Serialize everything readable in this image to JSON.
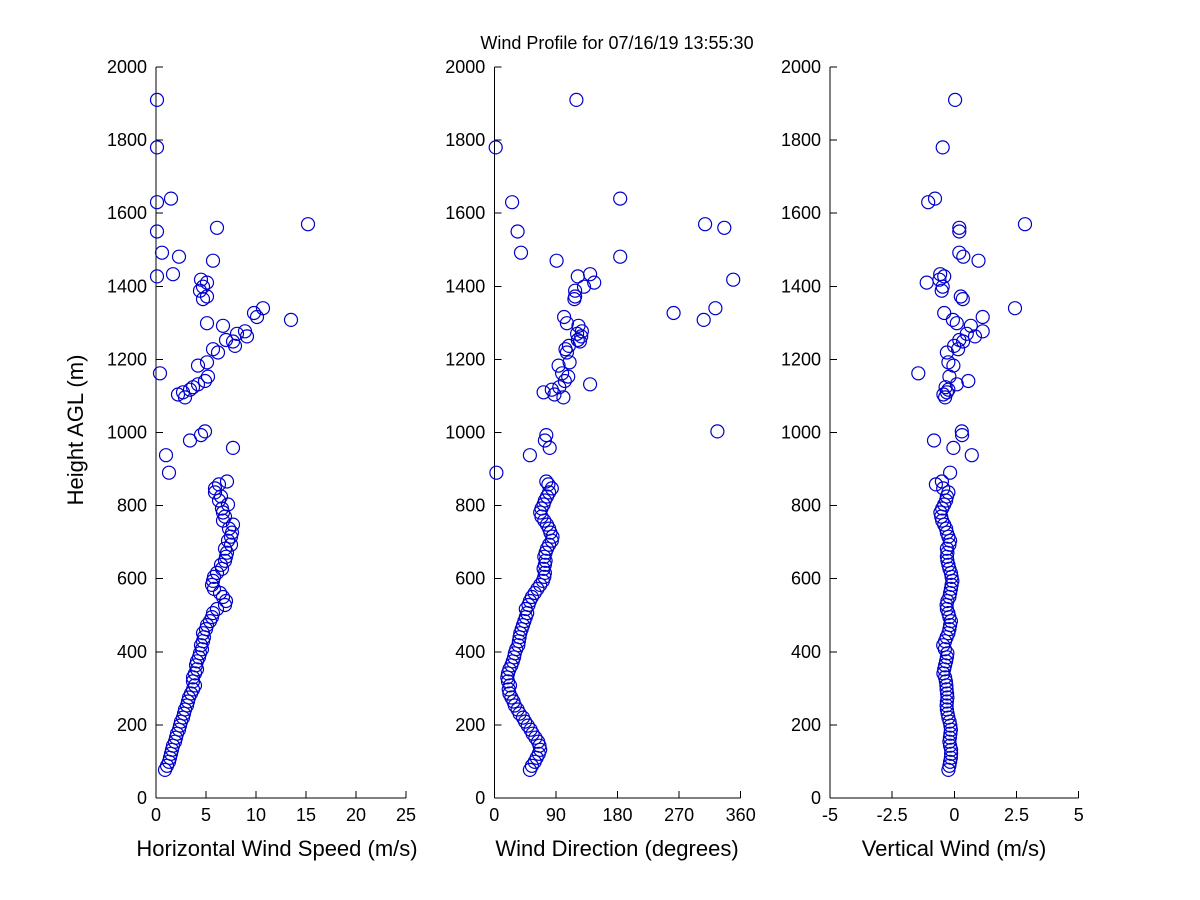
{
  "title": "Wind Profile for  07/16/19 13:55:30",
  "chart_data": {
    "type": "scatter",
    "marker": {
      "shape": "open-circle",
      "color": "#0000cc",
      "radius_px": 6.5
    },
    "grid": false,
    "legend": "none",
    "ylabel": "Height AGL (m)",
    "ylim": [
      0,
      2000
    ],
    "yticks": [
      0,
      200,
      400,
      600,
      800,
      1000,
      1200,
      1400,
      1600,
      1800,
      2000
    ],
    "subplots": [
      {
        "id": "speed",
        "xlabel": "Horizontal Wind Speed (m/s)",
        "xlim": [
          0,
          25
        ],
        "xticks": [
          0,
          5,
          10,
          15,
          20,
          25
        ],
        "data_column": "speed_ms"
      },
      {
        "id": "direction",
        "xlabel": "Wind Direction (degrees)",
        "xlim": [
          0,
          360
        ],
        "xticks": [
          0,
          90,
          180,
          270,
          360
        ],
        "data_column": "direction_deg"
      },
      {
        "id": "vertical",
        "xlabel": "Vertical Wind (m/s)",
        "xlim": [
          -5,
          5
        ],
        "xticks": [
          -5,
          -2.5,
          0,
          2.5,
          5
        ],
        "data_column": "vertical_ms"
      }
    ],
    "columns": [
      "height_m",
      "speed_ms",
      "direction_deg",
      "vertical_ms"
    ],
    "points": [
      [
        77,
        0.9,
        52,
        -0.24
      ],
      [
        88,
        1.1,
        55,
        -0.2
      ],
      [
        99,
        1.3,
        59,
        -0.17
      ],
      [
        110,
        1.4,
        62,
        -0.14
      ],
      [
        121,
        1.5,
        65,
        -0.13
      ],
      [
        132,
        1.6,
        67,
        -0.13
      ],
      [
        143,
        1.7,
        66,
        -0.17
      ],
      [
        154,
        1.9,
        64,
        -0.2
      ],
      [
        165,
        2.0,
        60,
        -0.18
      ],
      [
        176,
        2.1,
        56,
        -0.16
      ],
      [
        187,
        2.3,
        53,
        -0.14
      ],
      [
        198,
        2.4,
        49,
        -0.16
      ],
      [
        209,
        2.5,
        45,
        -0.19
      ],
      [
        220,
        2.7,
        42,
        -0.24
      ],
      [
        231,
        2.8,
        37,
        -0.27
      ],
      [
        242,
        2.9,
        34,
        -0.3
      ],
      [
        253,
        3.1,
        30,
        -0.31
      ],
      [
        264,
        3.2,
        28,
        -0.3
      ],
      [
        275,
        3.3,
        25,
        -0.28
      ],
      [
        286,
        3.5,
        22,
        -0.29
      ],
      [
        297,
        3.7,
        21,
        -0.31
      ],
      [
        308,
        3.9,
        23,
        -0.32
      ],
      [
        319,
        3.7,
        20,
        -0.34
      ],
      [
        330,
        3.7,
        19,
        -0.37
      ],
      [
        341,
        3.9,
        20,
        -0.44
      ],
      [
        352,
        4.1,
        22,
        -0.41
      ],
      [
        363,
        4.0,
        25,
        -0.37
      ],
      [
        374,
        4.1,
        27,
        -0.33
      ],
      [
        385,
        4.3,
        29,
        -0.3
      ],
      [
        396,
        4.4,
        30,
        -0.28
      ],
      [
        407,
        4.6,
        32,
        -0.38
      ],
      [
        418,
        4.5,
        35,
        -0.45
      ],
      [
        429,
        4.7,
        36,
        -0.37
      ],
      [
        440,
        4.8,
        37,
        -0.31
      ],
      [
        451,
        4.7,
        38,
        -0.24
      ],
      [
        462,
        5.0,
        40,
        -0.2
      ],
      [
        473,
        5.1,
        42,
        -0.17
      ],
      [
        484,
        5.4,
        44,
        -0.14
      ],
      [
        495,
        5.6,
        46,
        -0.2
      ],
      [
        506,
        5.7,
        48,
        -0.24
      ],
      [
        517,
        6.1,
        46,
        -0.3
      ],
      [
        528,
        6.9,
        50,
        -0.31
      ],
      [
        539,
        7.0,
        52,
        -0.28
      ],
      [
        550,
        6.7,
        55,
        -0.2
      ],
      [
        561,
        6.4,
        59,
        -0.17
      ],
      [
        572,
        5.8,
        63,
        -0.14
      ],
      [
        583,
        5.6,
        67,
        -0.11
      ],
      [
        594,
        5.7,
        71,
        -0.08
      ],
      [
        605,
        5.8,
        73,
        -0.11
      ],
      [
        616,
        6.1,
        74,
        -0.14
      ],
      [
        627,
        6.6,
        72,
        -0.2
      ],
      [
        638,
        6.5,
        74,
        -0.24
      ],
      [
        649,
        6.9,
        75,
        -0.28
      ],
      [
        660,
        7.0,
        73,
        -0.3
      ],
      [
        671,
        7.1,
        75,
        -0.28
      ],
      [
        682,
        6.9,
        77,
        -0.3
      ],
      [
        693,
        7.5,
        80,
        -0.2
      ],
      [
        704,
        7.2,
        84,
        -0.17
      ],
      [
        715,
        7.5,
        85,
        -0.24
      ],
      [
        726,
        7.6,
        82,
        -0.3
      ],
      [
        737,
        7.3,
        80,
        -0.33
      ],
      [
        748,
        7.7,
        77,
        -0.41
      ],
      [
        759,
        6.7,
        73,
        -0.49
      ],
      [
        770,
        6.9,
        69,
        -0.53
      ],
      [
        781,
        6.7,
        67,
        -0.56
      ],
      [
        792,
        6.6,
        69,
        -0.49
      ],
      [
        803,
        7.2,
        72,
        -0.41
      ],
      [
        814,
        6.3,
        74,
        -0.33
      ],
      [
        825,
        6.5,
        77,
        -0.3
      ],
      [
        836,
        5.9,
        80,
        -0.24
      ],
      [
        847,
        5.9,
        84,
        -0.45
      ],
      [
        858,
        6.3,
        79,
        -0.74
      ],
      [
        866,
        7.1,
        76,
        -0.5
      ],
      [
        890,
        1.3,
        3,
        -0.17
      ],
      [
        938,
        1.0,
        52,
        0.7
      ],
      [
        958,
        7.7,
        81,
        -0.04
      ],
      [
        978,
        3.4,
        74,
        -0.82
      ],
      [
        993,
        4.5,
        76,
        0.31
      ],
      [
        1003,
        4.9,
        326,
        0.3
      ],
      [
        1096,
        2.9,
        101,
        -0.37
      ],
      [
        1104,
        2.2,
        88,
        -0.44
      ],
      [
        1110,
        2.7,
        72,
        -0.3
      ],
      [
        1117,
        3.4,
        84,
        -0.24
      ],
      [
        1124,
        3.7,
        95,
        -0.35
      ],
      [
        1132,
        4.2,
        140,
        0.1
      ],
      [
        1141,
        4.9,
        103,
        0.56
      ],
      [
        1153,
        5.2,
        108,
        -0.2
      ],
      [
        1162,
        0.4,
        99,
        -1.45
      ],
      [
        1183,
        4.2,
        94,
        -0.04
      ],
      [
        1192,
        5.1,
        110,
        -0.24
      ],
      [
        1219,
        6.2,
        106,
        -0.3
      ],
      [
        1228,
        5.7,
        104,
        0.15
      ],
      [
        1237,
        7.9,
        109,
        -0.01
      ],
      [
        1249,
        7.7,
        125,
        0.35
      ],
      [
        1253,
        7.0,
        122,
        0.2
      ],
      [
        1263,
        9.1,
        127,
        0.83
      ],
      [
        1270,
        8.1,
        121,
        0.5
      ],
      [
        1277,
        8.9,
        128,
        1.14
      ],
      [
        1292,
        6.7,
        123,
        0.66
      ],
      [
        1299,
        5.1,
        106,
        0.1
      ],
      [
        1308,
        13.5,
        306,
        -0.06
      ],
      [
        1316,
        10.1,
        102,
        1.14
      ],
      [
        1327,
        9.8,
        262,
        -0.41
      ],
      [
        1340,
        10.7,
        323,
        2.44
      ],
      [
        1365,
        4.7,
        117,
        0.34
      ],
      [
        1372,
        5.1,
        118,
        0.26
      ],
      [
        1388,
        4.4,
        118,
        -0.51
      ],
      [
        1399,
        4.7,
        131,
        -0.47
      ],
      [
        1410,
        5.1,
        146,
        -1.11
      ],
      [
        1418,
        4.5,
        349,
        -0.6
      ],
      [
        1427,
        0.1,
        122,
        -0.41
      ],
      [
        1433,
        1.7,
        140,
        -0.57
      ],
      [
        1470,
        5.7,
        91,
        0.97
      ],
      [
        1481,
        2.3,
        184,
        0.36
      ],
      [
        1492,
        0.6,
        39,
        0.2
      ],
      [
        1550,
        0.1,
        34,
        0.2
      ],
      [
        1560,
        6.1,
        336,
        0.2
      ],
      [
        1570,
        15.2,
        308,
        2.84
      ],
      [
        1630,
        0.1,
        26,
        -1.05
      ],
      [
        1640,
        1.5,
        184,
        -0.78
      ],
      [
        1780,
        0.1,
        2,
        -0.47
      ],
      [
        1910,
        0.1,
        120,
        0.03
      ]
    ]
  }
}
